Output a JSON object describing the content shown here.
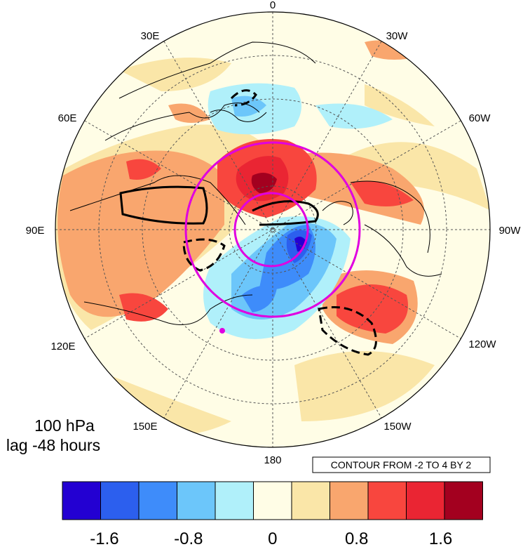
{
  "panel": {
    "level": "100 hPa",
    "lag": "lag -48 hours",
    "contour_note": "CONTOUR FROM -2 TO 4 BY 2"
  },
  "longitude_labels": [
    "0",
    "30W",
    "60W",
    "90W",
    "120W",
    "150W",
    "180",
    "150E",
    "120E",
    "90E",
    "60E",
    "30E"
  ],
  "colorbar": {
    "levels": [
      -2.0,
      -1.6,
      -1.2,
      -0.8,
      -0.4,
      0,
      0.4,
      0.8,
      1.2,
      1.6,
      2.0
    ],
    "colors": [
      "#2300d2",
      "#2c5fee",
      "#3e8cfa",
      "#6cc6fa",
      "#b0f0fa",
      "#fffde6",
      "#fae6a8",
      "#f9a66e",
      "#f8463e",
      "#ea2533",
      "#a3001f"
    ],
    "labels": [
      "-1.6",
      "-0.8",
      "0",
      "0.8",
      "1.6"
    ]
  },
  "overlay": {
    "circle_color": "#e000e0",
    "contour_color": "#000000"
  }
}
